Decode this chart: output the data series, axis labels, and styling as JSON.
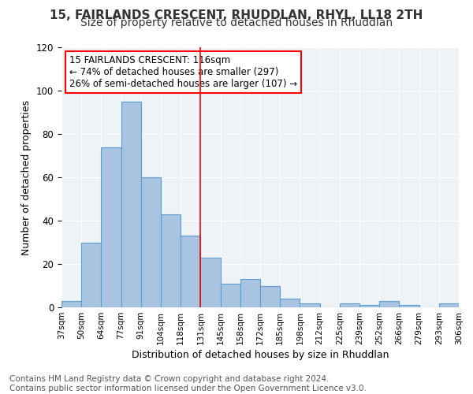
{
  "title1": "15, FAIRLANDS CRESCENT, RHUDDLAN, RHYL, LL18 2TH",
  "title2": "Size of property relative to detached houses in Rhuddlan",
  "xlabel": "Distribution of detached houses by size in Rhuddlan",
  "ylabel": "Number of detached properties",
  "bin_labels": [
    "37sqm",
    "50sqm",
    "64sqm",
    "77sqm",
    "91sqm",
    "104sqm",
    "118sqm",
    "131sqm",
    "145sqm",
    "158sqm",
    "172sqm",
    "185sqm",
    "198sqm",
    "212sqm",
    "225sqm",
    "239sqm",
    "252sqm",
    "266sqm",
    "279sqm",
    "293sqm",
    "306sqm"
  ],
  "bar_values": [
    3,
    30,
    74,
    95,
    60,
    43,
    33,
    23,
    11,
    13,
    10,
    4,
    2,
    0,
    2,
    1,
    3,
    1,
    0,
    2
  ],
  "bar_color": "#a8c4e0",
  "bar_edge_color": "#5a9fd4",
  "vline_x": 6.5,
  "vline_color": "red",
  "annotation_text": "15 FAIRLANDS CRESCENT: 116sqm\n← 74% of detached houses are smaller (297)\n26% of semi-detached houses are larger (107) →",
  "annotation_box_color": "white",
  "annotation_edge_color": "red",
  "ylim": [
    0,
    120
  ],
  "yticks": [
    0,
    20,
    40,
    60,
    80,
    100,
    120
  ],
  "bg_color": "#eef3f8",
  "footer": "Contains HM Land Registry data © Crown copyright and database right 2024.\nContains public sector information licensed under the Open Government Licence v3.0.",
  "title1_fontsize": 11,
  "title2_fontsize": 10,
  "annotation_fontsize": 8.5,
  "footer_fontsize": 7.5
}
